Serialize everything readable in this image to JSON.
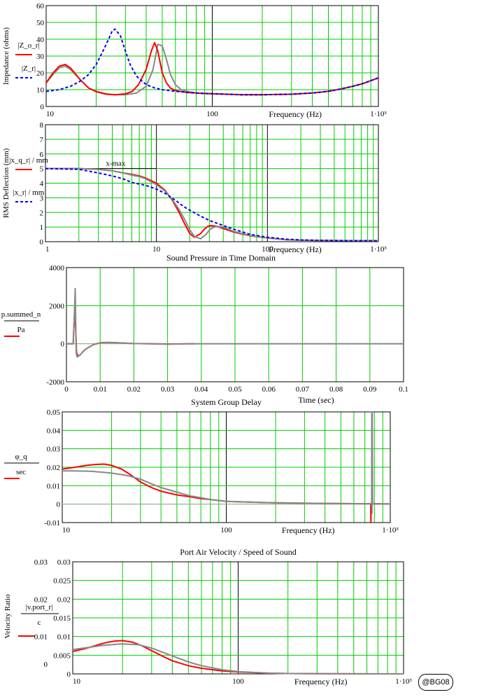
{
  "signature": "@BG08",
  "colors": {
    "grid": "#00cc00",
    "red": "#ff0000",
    "gray": "#888888",
    "blue": "#0000ee",
    "decade": "#000000"
  },
  "chart_data": [
    {
      "id": "impedance",
      "type": "line",
      "title": "",
      "xscale": "log",
      "xlim": [
        10,
        1000
      ],
      "ylim": [
        0,
        60
      ],
      "xlabel": "Frequency (Hz)",
      "ylabel": "Impedance (ohms)",
      "xticks": [
        "10",
        "100",
        "1·10³"
      ],
      "yticks": [
        "0",
        "10",
        "20",
        "30",
        "40",
        "50",
        "60"
      ],
      "legend": [
        {
          "label": "|Z_o_r|",
          "color": "red",
          "style": "solid"
        },
        {
          "label": "|Z_r|",
          "color": "blue",
          "style": "dashed"
        }
      ],
      "series": [
        {
          "color": "gray",
          "style": "solid",
          "x": [
            10,
            11,
            12,
            13,
            14,
            16,
            18,
            20,
            23,
            26,
            30,
            35,
            40,
            44,
            47,
            50,
            53,
            56,
            60,
            65,
            70,
            80,
            90,
            100,
            150,
            200,
            300,
            400,
            500,
            600,
            700,
            800,
            1000
          ],
          "y": [
            14,
            19,
            23,
            24,
            22,
            16,
            11,
            9,
            7.5,
            7,
            7,
            8,
            12,
            22,
            37,
            36,
            28,
            19,
            13,
            10,
            9,
            8,
            7.6,
            7.5,
            7,
            7,
            7.3,
            8,
            9,
            10.5,
            12,
            13.5,
            17
          ]
        },
        {
          "color": "red",
          "style": "solid",
          "x": [
            10,
            11,
            12,
            13,
            14,
            16,
            18,
            20,
            23,
            26,
            30,
            33,
            36,
            40,
            43,
            45,
            47,
            50,
            53,
            56,
            60,
            70,
            80,
            100,
            150,
            200,
            300,
            400,
            500,
            600,
            700,
            800,
            1000
          ],
          "y": [
            14,
            20,
            24,
            25,
            23,
            16,
            11,
            8.8,
            7.3,
            7,
            7.5,
            9,
            13,
            22,
            33,
            38,
            33,
            20,
            14,
            11,
            9.5,
            8.3,
            8,
            7.6,
            7,
            7,
            7.3,
            8,
            9,
            10.5,
            12,
            13.5,
            17
          ]
        },
        {
          "color": "blue",
          "style": "dashed",
          "x": [
            10,
            12,
            14,
            16,
            18,
            20,
            22,
            24,
            25,
            26,
            28,
            30,
            32,
            35,
            40,
            45,
            50,
            60,
            70,
            80,
            100,
            150,
            200,
            300,
            400,
            500,
            600,
            700,
            800,
            1000
          ],
          "y": [
            9,
            10,
            12,
            15,
            19,
            25,
            33,
            41,
            45,
            46,
            42,
            33,
            25,
            18,
            13,
            11,
            10,
            9,
            8.5,
            8,
            7.6,
            7,
            7,
            7.3,
            8,
            9,
            10.5,
            12,
            13.5,
            17
          ]
        }
      ]
    },
    {
      "id": "deflection",
      "type": "line",
      "title": "",
      "xscale": "log",
      "xlim": [
        1,
        1000
      ],
      "ylim": [
        0,
        8
      ],
      "xlabel": "Frequency (Hz)",
      "ylabel": "RMS Deflection (mm)",
      "xticks": [
        "1",
        "10",
        "100",
        "1·10³"
      ],
      "yticks": [
        "0",
        "1",
        "2",
        "3",
        "4",
        "5",
        "6",
        "7",
        "8"
      ],
      "annotation": "x-max",
      "xmax_level": 5,
      "legend": [
        {
          "label": "|x_q_r| / mm",
          "color": "red",
          "style": "solid"
        },
        {
          "label": "|x_r| / mm",
          "color": "blue",
          "style": "dashed"
        }
      ],
      "series": [
        {
          "color": "red",
          "style": "solid",
          "x": [
            1,
            2,
            3,
            4,
            5,
            6,
            7,
            8,
            10,
            12,
            14,
            16,
            18,
            20,
            22,
            25,
            27,
            29,
            31,
            35,
            40,
            50,
            70,
            100,
            150,
            200,
            300,
            500,
            1000
          ],
          "y": [
            5,
            5,
            4.95,
            4.85,
            4.7,
            4.6,
            4.5,
            4.35,
            4,
            3.5,
            2.8,
            2,
            1.2,
            0.55,
            0.3,
            0.55,
            0.85,
            1.05,
            1.1,
            1.05,
            0.9,
            0.65,
            0.4,
            0.25,
            0.13,
            0.1,
            0.08,
            0.07,
            0.06
          ]
        },
        {
          "color": "gray",
          "style": "solid",
          "x": [
            1,
            2,
            3,
            4,
            5,
            6,
            7,
            8,
            10,
            12,
            14,
            16,
            18,
            20,
            22,
            25,
            28,
            30,
            32,
            35,
            40,
            50,
            70,
            100,
            150,
            200,
            300,
            500,
            1000
          ],
          "y": [
            5,
            5,
            4.95,
            4.85,
            4.7,
            4.55,
            4.45,
            4.3,
            3.9,
            3.45,
            2.85,
            2.2,
            1.5,
            0.8,
            0.35,
            0.2,
            0.5,
            0.8,
            0.95,
            1.05,
            1,
            0.7,
            0.42,
            0.25,
            0.13,
            0.1,
            0.08,
            0.07,
            0.06
          ]
        },
        {
          "color": "blue",
          "style": "dashed",
          "x": [
            1,
            2,
            3,
            4,
            5,
            6,
            8,
            10,
            12,
            15,
            18,
            20,
            25,
            30,
            40,
            50,
            70,
            100,
            150,
            200,
            300,
            500,
            1000
          ],
          "y": [
            5,
            4.95,
            4.7,
            4.5,
            4.3,
            4.05,
            3.85,
            3.6,
            3.3,
            2.8,
            2.35,
            2.15,
            1.75,
            1.45,
            1.1,
            0.85,
            0.5,
            0.3,
            0.17,
            0.12,
            0.09,
            0.07,
            0.06
          ]
        }
      ]
    },
    {
      "id": "timedomain",
      "type": "line",
      "title": "Sound Pressure in Time Domain",
      "xscale": "linear",
      "xlim": [
        0,
        0.1
      ],
      "ylim": [
        -2000,
        4000
      ],
      "xlabel": "Time (sec)",
      "ylabel": "p.summed_n / Pa",
      "xticks": [
        "0",
        "0.01",
        "0.02",
        "0.03",
        "0.04",
        "0.05",
        "0.06",
        "0.07",
        "0.08",
        "0.09",
        "0.1"
      ],
      "yticks": [
        "-2000",
        "0",
        "2000",
        "4000"
      ],
      "series": [
        {
          "color": "red",
          "style": "solid",
          "x": [
            0,
            0.002,
            0.0025,
            0.003,
            0.0035,
            0.004,
            0.005,
            0.006,
            0.008,
            0.01,
            0.012,
            0.015,
            0.02,
            0.025,
            0.03,
            0.035,
            0.038
          ],
          "y": [
            0,
            0,
            2000,
            -500,
            -650,
            -600,
            -400,
            -250,
            -50,
            50,
            70,
            50,
            10,
            0,
            -20,
            -10,
            0
          ]
        },
        {
          "color": "gray",
          "style": "solid",
          "x": [
            0,
            0.002,
            0.0023,
            0.0026,
            0.0029,
            0.0032,
            0.0035,
            0.004,
            0.005,
            0.006,
            0.008,
            0.01,
            0.012,
            0.015,
            0.02,
            0.025,
            0.03,
            0.04,
            0.06,
            0.08,
            0.1
          ],
          "y": [
            0,
            0,
            1200,
            2900,
            -500,
            -700,
            -650,
            -600,
            -400,
            -250,
            -50,
            50,
            60,
            50,
            10,
            0,
            -10,
            0,
            0,
            0,
            0
          ]
        }
      ]
    },
    {
      "id": "groupdelay",
      "type": "line",
      "title": "System Group Delay",
      "xscale": "log",
      "xlim": [
        10,
        1000
      ],
      "ylim": [
        -0.01,
        0.05
      ],
      "xlabel": "Frequency (Hz)",
      "ylabel": "φ_q / sec",
      "xticks": [
        "10",
        "100",
        "1·10³"
      ],
      "yticks": [
        "-0.01",
        "0",
        "0.01",
        "0.02",
        "0.03",
        "0.04",
        "0.05"
      ],
      "series": [
        {
          "color": "red",
          "style": "solid",
          "x": [
            10,
            12,
            14,
            16,
            18,
            20,
            23,
            26,
            30,
            35,
            40,
            50,
            60,
            70,
            80,
            100,
            150,
            200,
            300,
            500,
            700,
            760,
            762,
            764,
            770,
            1000
          ],
          "y": [
            0.019,
            0.02,
            0.021,
            0.0215,
            0.0217,
            0.021,
            0.019,
            0.016,
            0.012,
            0.009,
            0.007,
            0.005,
            0.004,
            0.003,
            0.0025,
            0.0015,
            0.001,
            0.0007,
            0.0005,
            0.0003,
            0.0002,
            0.0002,
            -0.01,
            0.0002,
            0.0002,
            0.0001
          ]
        },
        {
          "color": "gray",
          "style": "solid",
          "x": [
            10,
            12,
            15,
            18,
            20,
            25,
            30,
            35,
            40,
            50,
            60,
            70,
            80,
            100,
            150,
            200,
            300,
            500,
            700,
            770,
            772,
            774,
            776,
            780,
            800,
            1000
          ],
          "y": [
            0.018,
            0.018,
            0.0178,
            0.0172,
            0.0168,
            0.0155,
            0.0135,
            0.011,
            0.009,
            0.0065,
            0.0045,
            0.0035,
            0.0025,
            0.0015,
            0.001,
            0.0007,
            0.0005,
            0.0003,
            0.0002,
            0.0002,
            0.05,
            -0.005,
            0.05,
            0.0002,
            0.0002,
            0.0001
          ]
        }
      ]
    },
    {
      "id": "portvelocity",
      "type": "line",
      "title": "Port Air Velocity / Speed of Sound",
      "xscale": "log",
      "xlim": [
        10,
        1000
      ],
      "ylim": [
        0,
        0.03
      ],
      "xlabel": "Frequency (Hz)",
      "ylabel": "Velocity Ratio",
      "legend_label": "|v.port_r| / c",
      "xticks": [
        "10",
        "100",
        "1·10³"
      ],
      "yticks": [
        "0",
        "0.005",
        "0.01",
        "0.015",
        "0.02",
        "0.025",
        "0.03"
      ],
      "outer_yticks": [
        "0",
        "0.01",
        "0.02",
        "0.03"
      ],
      "series": [
        {
          "color": "red",
          "style": "solid",
          "x": [
            10,
            12,
            14,
            16,
            18,
            20,
            23,
            26,
            30,
            35,
            40,
            50,
            60,
            80,
            100,
            150,
            200,
            300,
            500,
            1000
          ],
          "y": [
            0.006,
            0.0068,
            0.0077,
            0.0084,
            0.0088,
            0.0089,
            0.0085,
            0.0076,
            0.0062,
            0.0047,
            0.0035,
            0.0022,
            0.0015,
            0.0008,
            0.0005,
            0.0002,
            0.0001,
            5e-05,
            2e-05,
            0
          ]
        },
        {
          "color": "gray",
          "style": "solid",
          "x": [
            10,
            12,
            15,
            18,
            20,
            25,
            30,
            35,
            40,
            50,
            60,
            80,
            100,
            150,
            200,
            300,
            500,
            1000
          ],
          "y": [
            0.0065,
            0.007,
            0.0076,
            0.0079,
            0.008,
            0.0078,
            0.0069,
            0.0058,
            0.0048,
            0.0032,
            0.0022,
            0.0011,
            0.0006,
            0.0002,
            0.0001,
            5e-05,
            2e-05,
            0
          ]
        }
      ]
    }
  ]
}
